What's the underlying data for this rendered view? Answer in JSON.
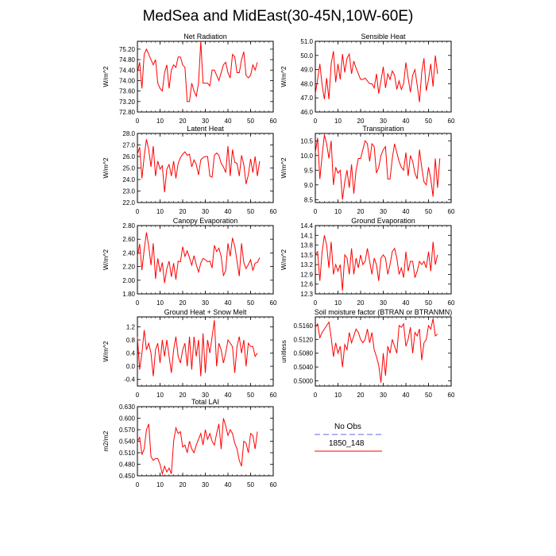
{
  "title": "MedSea and MidEast(30-45N,10W-60E)",
  "colors": {
    "model_line": "#ff0000",
    "obs_line": "#9999ee",
    "axis": "#000000"
  },
  "legend": {
    "obs_label": "No Obs",
    "model_label": "1850_148"
  },
  "chart_data": [
    {
      "type": "line",
      "title": "Net Radiation",
      "ylabel": "W/m^2",
      "xlim": [
        0,
        60
      ],
      "ylim": [
        72.8,
        75.5
      ],
      "xticks": [
        0,
        10,
        20,
        30,
        40,
        50,
        60
      ],
      "yticks": [
        72.8,
        73.2,
        73.6,
        74.0,
        74.4,
        74.8,
        75.2
      ],
      "ytick_labels": [
        "72.80",
        "73.20",
        "73.60",
        "74.00",
        "74.40",
        "74.80",
        "75.20"
      ],
      "series": [
        {
          "values": [
            74.3,
            74.7,
            73.7,
            75.0,
            75.2,
            75.0,
            74.8,
            74.6,
            74.8,
            73.9,
            73.7,
            73.6,
            74.3,
            74.6,
            73.7,
            74.4,
            74.6,
            74.5,
            74.9,
            74.9,
            74.6,
            74.5,
            73.2,
            73.2,
            73.9,
            73.6,
            73.4,
            73.9,
            75.5,
            73.9,
            73.9,
            73.9,
            73.8,
            74.4,
            74.4,
            74.2,
            74.0,
            74.3,
            74.6,
            74.7,
            74.3,
            74.1,
            75.0,
            74.9,
            74.3,
            74.3,
            74.8,
            75.1,
            74.2,
            74.1,
            74.2,
            74.6,
            74.4,
            74.7
          ]
        }
      ]
    },
    {
      "type": "line",
      "title": "Sensible Heat",
      "ylabel": "W/m^2",
      "xlim": [
        0,
        60
      ],
      "ylim": [
        46.0,
        51.0
      ],
      "xticks": [
        0,
        10,
        20,
        30,
        40,
        50,
        60
      ],
      "yticks": [
        46,
        47,
        48,
        49,
        50,
        51
      ],
      "ytick_labels": [
        "46.0",
        "47.0",
        "48.0",
        "49.0",
        "50.0",
        "51.0"
      ],
      "series": [
        {
          "values": [
            47.3,
            48.3,
            49.4,
            47.9,
            46.9,
            48.4,
            46.9,
            49.4,
            50.3,
            48.1,
            49.4,
            48.3,
            50.1,
            48.8,
            49.8,
            50.1,
            48.7,
            49.6,
            49.1,
            48.7,
            48.3,
            48.3,
            48.4,
            48.2,
            48.0,
            48.0,
            47.7,
            48.7,
            47.3,
            48.2,
            49.2,
            47.7,
            48.7,
            48.3,
            48.9,
            48.6,
            47.6,
            48.2,
            47.6,
            48.0,
            49.5,
            48.4,
            47.4,
            48.6,
            49.0,
            47.9,
            46.7,
            48.8,
            49.8,
            47.5,
            48.3,
            49.4,
            47.8,
            50.0,
            48.7
          ]
        }
      ]
    },
    {
      "type": "line",
      "title": "Latent Heat",
      "ylabel": "W/m^2",
      "xlim": [
        0,
        60
      ],
      "ylim": [
        22.0,
        28.0
      ],
      "xticks": [
        0,
        10,
        20,
        30,
        40,
        50,
        60
      ],
      "yticks": [
        22,
        23,
        24,
        25,
        26,
        27,
        28
      ],
      "ytick_labels": [
        "22.0",
        "23.0",
        "24.0",
        "25.0",
        "26.0",
        "27.0",
        "28.0"
      ],
      "series": [
        {
          "values": [
            26.2,
            26.8,
            24.1,
            26.0,
            27.5,
            26.6,
            25.1,
            26.9,
            24.3,
            25.6,
            24.9,
            25.2,
            22.9,
            24.9,
            25.3,
            24.3,
            25.6,
            24.1,
            25.4,
            25.9,
            26.2,
            26.4,
            26.1,
            26.2,
            25.1,
            25.7,
            25.3,
            24.4,
            25.7,
            25.9,
            26.0,
            26.0,
            24.3,
            24.2,
            26.1,
            26.3,
            26.1,
            25.4,
            25.1,
            24.6,
            26.9,
            24.3,
            26.6,
            25.5,
            25.4,
            24.3,
            26.1,
            25.3,
            23.6,
            24.4,
            25.8,
            24.6,
            26.0,
            24.3,
            25.6
          ]
        }
      ]
    },
    {
      "type": "line",
      "title": "Transpiration",
      "ylabel": "W/m^2",
      "xlim": [
        0,
        60
      ],
      "ylim": [
        8.4,
        10.75
      ],
      "xticks": [
        0,
        10,
        20,
        30,
        40,
        50,
        60
      ],
      "yticks": [
        8.5,
        9.0,
        9.5,
        10.0,
        10.5
      ],
      "ytick_labels": [
        "8.5",
        "9.0",
        "9.5",
        "10.0",
        "10.5"
      ],
      "series": [
        {
          "values": [
            10.1,
            10.6,
            9.2,
            10.0,
            10.7,
            10.4,
            9.9,
            10.5,
            9.0,
            9.6,
            9.4,
            9.5,
            8.5,
            9.1,
            9.5,
            8.9,
            9.7,
            8.7,
            9.5,
            9.9,
            9.9,
            10.2,
            10.5,
            10.4,
            9.8,
            10.4,
            10.3,
            9.4,
            9.6,
            10.0,
            10.2,
            10.3,
            9.2,
            9.2,
            9.9,
            10.4,
            10.1,
            9.8,
            9.6,
            9.5,
            10.1,
            9.3,
            10.0,
            9.8,
            9.4,
            9.2,
            10.2,
            9.6,
            9.1,
            9.0,
            9.6,
            9.2,
            8.6,
            9.9,
            8.9,
            9.9
          ]
        }
      ]
    },
    {
      "type": "line",
      "title": "Canopy Evaporation",
      "ylabel": "W/m^2",
      "xlim": [
        0,
        60
      ],
      "ylim": [
        1.8,
        2.8
      ],
      "xticks": [
        0,
        10,
        20,
        30,
        40,
        50,
        60
      ],
      "yticks": [
        1.8,
        2.0,
        2.2,
        2.4,
        2.6,
        2.8
      ],
      "ytick_labels": [
        "1.80",
        "2.00",
        "2.20",
        "2.40",
        "2.60",
        "2.80"
      ],
      "series": [
        {
          "values": [
            2.35,
            2.53,
            2.15,
            2.45,
            2.7,
            2.5,
            2.22,
            2.54,
            2.02,
            2.32,
            2.12,
            2.26,
            1.96,
            2.17,
            2.28,
            2.05,
            2.25,
            2.01,
            2.28,
            2.27,
            2.49,
            2.35,
            2.43,
            2.33,
            2.22,
            2.36,
            2.23,
            2.12,
            2.25,
            2.32,
            2.3,
            2.27,
            2.28,
            2.18,
            2.51,
            2.42,
            2.47,
            2.35,
            2.07,
            2.14,
            2.54,
            2.35,
            2.62,
            2.5,
            2.28,
            2.06,
            2.54,
            2.26,
            2.17,
            2.23,
            2.3,
            2.14,
            2.25,
            2.26,
            2.33
          ]
        }
      ]
    },
    {
      "type": "line",
      "title": "Ground Evaporation",
      "ylabel": "W/m^2",
      "xlim": [
        0,
        60
      ],
      "ylim": [
        12.3,
        14.4
      ],
      "xticks": [
        0,
        10,
        20,
        30,
        40,
        50,
        60
      ],
      "yticks": [
        12.3,
        12.6,
        12.9,
        13.2,
        13.5,
        13.8,
        14.1,
        14.4
      ],
      "ytick_labels": [
        "12.3",
        "12.6",
        "12.9",
        "13.2",
        "13.5",
        "13.8",
        "14.1",
        "14.4"
      ],
      "series": [
        {
          "values": [
            13.5,
            13.6,
            12.7,
            13.6,
            14.1,
            13.8,
            13.1,
            13.9,
            12.9,
            13.2,
            13.0,
            13.2,
            12.4,
            13.5,
            13.4,
            12.9,
            13.7,
            12.9,
            13.4,
            13.1,
            13.5,
            13.2,
            13.3,
            13.7,
            13.3,
            12.9,
            13.4,
            13.2,
            12.7,
            13.4,
            13.5,
            13.4,
            12.9,
            13.2,
            13.6,
            13.7,
            13.4,
            12.9,
            13.1,
            12.8,
            13.6,
            13.0,
            13.3,
            13.3,
            12.8,
            13.0,
            13.3,
            13.2,
            13.3,
            13.1,
            13.6,
            13.0,
            13.9,
            13.2,
            13.5
          ]
        }
      ]
    },
    {
      "type": "line",
      "title": "Ground Heat + Snow Melt",
      "ylabel": "W/m^2",
      "xlim": [
        0,
        60
      ],
      "ylim": [
        -0.6,
        1.5
      ],
      "xticks": [
        0,
        10,
        20,
        30,
        40,
        50,
        60
      ],
      "yticks": [
        -0.4,
        0.0,
        0.4,
        0.8,
        1.2
      ],
      "ytick_labels": [
        "-0.4",
        "0.0",
        "0.4",
        "0.8",
        "1.2"
      ],
      "series": [
        {
          "values": [
            0.9,
            -0.1,
            0.4,
            1.1,
            0.5,
            0.7,
            0.4,
            -0.3,
            0.5,
            0.7,
            0.1,
            0.8,
            0.3,
            0.8,
            0.3,
            -0.2,
            0.5,
            0.9,
            0.3,
            0.1,
            0.5,
            0.7,
            0.0,
            0.9,
            -0.1,
            0.9,
            0.3,
            0.8,
            -0.3,
            1.0,
            -0.2,
            0.8,
            0.4,
            0.9,
            1.4,
            0.0,
            0.7,
            0.5,
            0.1,
            0.4,
            0.8,
            0.7,
            0.6,
            -0.2,
            0.6,
            0.9,
            0.4,
            0.8,
            0.0,
            0.7,
            0.6,
            0.6,
            0.3,
            0.4
          ]
        }
      ]
    },
    {
      "type": "line",
      "title": "Soil moisture factor (BTRAN or BTRANMN)",
      "ylabel": "unitless",
      "xlim": [
        0,
        60
      ],
      "ylim": [
        0.4985,
        0.5185
      ],
      "xticks": [
        0,
        10,
        20,
        30,
        40,
        50,
        60
      ],
      "yticks": [
        0.5,
        0.504,
        0.508,
        0.512,
        0.516
      ],
      "ytick_labels": [
        "0.5000",
        "0.5040",
        "0.5080",
        "0.5120",
        "0.5160"
      ],
      "series": [
        {
          "values": [
            0.5155,
            0.5165,
            0.5125,
            0.514,
            0.515,
            0.516,
            0.517,
            0.5125,
            0.507,
            0.511,
            0.508,
            0.51,
            0.504,
            0.5105,
            0.509,
            0.514,
            0.511,
            0.513,
            0.515,
            0.514,
            0.512,
            0.511,
            0.512,
            0.515,
            0.511,
            0.514,
            0.509,
            0.507,
            0.5045,
            0.4995,
            0.508,
            0.5015,
            0.51,
            0.508,
            0.512,
            0.51,
            0.508,
            0.516,
            0.5155,
            0.5165,
            0.51,
            0.512,
            0.5155,
            0.508,
            0.514,
            0.513,
            0.515,
            0.506,
            0.511,
            0.512,
            0.516,
            0.515,
            0.518,
            0.513,
            0.5135
          ]
        }
      ]
    },
    {
      "type": "line",
      "title": "Total LAI",
      "ylabel": "m2/m2",
      "xlim": [
        0,
        60
      ],
      "ylim": [
        0.45,
        0.63
      ],
      "xticks": [
        0,
        10,
        20,
        30,
        40,
        50,
        60
      ],
      "yticks": [
        0.45,
        0.48,
        0.51,
        0.54,
        0.57,
        0.6,
        0.63
      ],
      "ytick_labels": [
        "0.450",
        "0.480",
        "0.510",
        "0.540",
        "0.570",
        "0.600",
        "0.630"
      ],
      "series": [
        {
          "values": [
            0.54,
            0.55,
            0.505,
            0.52,
            0.57,
            0.585,
            0.5,
            0.49,
            0.495,
            0.495,
            0.48,
            0.455,
            0.475,
            0.46,
            0.47,
            0.455,
            0.54,
            0.575,
            0.56,
            0.565,
            0.525,
            0.53,
            0.51,
            0.54,
            0.52,
            0.51,
            0.53,
            0.545,
            0.56,
            0.53,
            0.57,
            0.545,
            0.56,
            0.54,
            0.53,
            0.56,
            0.585,
            0.52,
            0.6,
            0.58,
            0.555,
            0.57,
            0.56,
            0.535,
            0.52,
            0.49,
            0.475,
            0.54,
            0.535,
            0.51,
            0.56,
            0.555,
            0.52,
            0.565
          ]
        }
      ]
    }
  ]
}
